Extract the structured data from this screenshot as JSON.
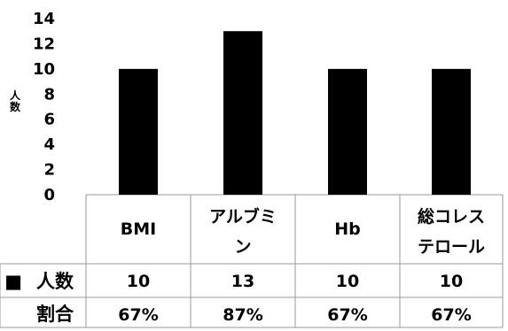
{
  "chart_data": {
    "type": "bar",
    "categories": [
      "BMI",
      "アルブミン",
      "Hb",
      "総コレステロール"
    ],
    "category_lines": [
      [
        "BMI"
      ],
      [
        "アルブミ",
        "ン"
      ],
      [
        "Hb"
      ],
      [
        "総コレス",
        "テロール"
      ]
    ],
    "series": [
      {
        "name": "人数",
        "values": [
          10,
          13,
          10,
          10
        ]
      }
    ],
    "ratios": [
      "67%",
      "87%",
      "67%",
      "67%"
    ],
    "ylabel": "人数",
    "ylabel_lines": [
      "人",
      "数"
    ],
    "yticks": [
      "14",
      "12",
      "10",
      "8",
      "6",
      "4",
      "2",
      "0"
    ],
    "ylim": [
      0,
      14
    ],
    "legend_marker": "■",
    "table_rows": [
      "人数",
      "割合"
    ],
    "grid": false,
    "bar_color": "#000000"
  }
}
